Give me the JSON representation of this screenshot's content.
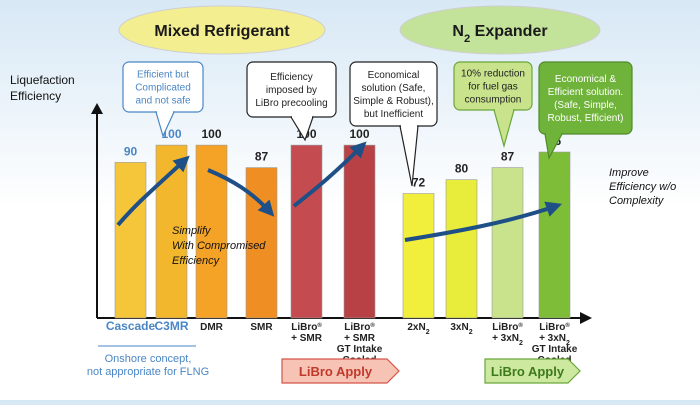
{
  "chart_data": {
    "type": "bar",
    "ylabel": "Liquefaction Efficiency",
    "ylim": [
      0,
      118
    ],
    "categories": [
      {
        "label": [
          "Cascade"
        ],
        "group": "Mixed Refrigerant",
        "value": 90,
        "color": "#f5c53a",
        "value_color": "#4a86c5",
        "label_color": "#4a86c5"
      },
      {
        "label": [
          "C3MR"
        ],
        "group": "Mixed Refrigerant",
        "value": 100,
        "color": "#f3b72d",
        "value_color": "#4a86c5",
        "label_color": "#4a86c5"
      },
      {
        "label": [
          "DMR"
        ],
        "group": "Mixed Refrigerant",
        "value": 100,
        "color": "#f5a326",
        "value_color": "#222222",
        "label_color": "#222222"
      },
      {
        "label": [
          "SMR"
        ],
        "group": "Mixed Refrigerant",
        "value": 87,
        "color": "#ee8e23",
        "value_color": "#222222",
        "label_color": "#222222"
      },
      {
        "label": [
          "LiBro",
          "+ SMR"
        ],
        "sup": "®",
        "group": "Mixed Refrigerant",
        "value": 100,
        "color": "#c44b4f",
        "value_color": "#222222",
        "label_color": "#222222"
      },
      {
        "label": [
          "LiBro",
          "+ SMR",
          "GT Intake",
          "Cooled"
        ],
        "sup": "®",
        "group": "Mixed Refrigerant",
        "value": 100,
        "color": "#b84146",
        "value_color": "#222222",
        "label_color": "#222222"
      },
      {
        "label": [
          "2xN2"
        ],
        "group": "N2 Expander",
        "value": 72,
        "color": "#f2ee3c",
        "value_color": "#222222",
        "label_color": "#222222"
      },
      {
        "label": [
          "3xN2"
        ],
        "group": "N2 Expander",
        "value": 80,
        "color": "#e8ec3a",
        "value_color": "#222222",
        "label_color": "#222222"
      },
      {
        "label": [
          "LiBro",
          "+ 3xN2"
        ],
        "sup": "®",
        "group": "N2 Expander",
        "value": 87,
        "color": "#c8e38c",
        "value_color": "#222222",
        "label_color": "#222222"
      },
      {
        "label": [
          "LiBro",
          "+ 3xN2",
          "GT Intake",
          "Cooled"
        ],
        "sup": "®",
        "group": "N2 Expander",
        "value": 96,
        "color": "#7dbd37",
        "value_color": "#222222",
        "label_color": "#222222"
      }
    ],
    "group_titles": [
      {
        "text": "Mixed Refrigerant",
        "color": "#f3ee8f"
      },
      {
        "text": "N2 Expander",
        "color": "#c3e29a"
      }
    ],
    "callouts": [
      {
        "lines": [
          "Efficient but",
          "Complicated",
          "and not safe"
        ],
        "fill": "#ffffff",
        "stroke": "#4a86c5",
        "text_color": "#4a86c5"
      },
      {
        "lines": [
          "Efficiency",
          "imposed by",
          "LiBro precooling"
        ],
        "fill": "#ffffff",
        "stroke": "#222222",
        "text_color": "#222222"
      },
      {
        "lines": [
          "Economical",
          "solution (Safe,",
          "Simple & Robust),",
          "but Inefficient"
        ],
        "fill": "#ffffff",
        "stroke": "#222222",
        "text_color": "#222222"
      },
      {
        "lines": [
          "10% reduction",
          "for fuel gas",
          "consumption"
        ],
        "fill": "#c8e38c",
        "stroke": "#6aa63a",
        "text_color": "#222222"
      },
      {
        "lines": [
          "Economical &",
          "Efficient solution.",
          "(Safe, Simple,",
          "Robust, Efficient)"
        ],
        "fill": "#6fb33a",
        "stroke": "#4f8a2a",
        "text_color": "#ffffff"
      }
    ],
    "annotations": {
      "simplify": [
        "Simplify",
        "With Compromised",
        "Efficiency"
      ],
      "improve": [
        "Improve",
        "Efficiency w/o",
        "Complexity"
      ],
      "onshore": [
        "Onshore concept,",
        "not appropriate for FLNG"
      ]
    },
    "apply_arrows": [
      {
        "text": "LiBro Apply",
        "fill": "#f6c3b5",
        "stroke": "#d4564a",
        "text_color": "#c0392b"
      },
      {
        "text": "LiBro Apply",
        "fill": "#cde99f",
        "stroke": "#6aa63a",
        "text_color": "#3d7a1c"
      }
    ]
  }
}
